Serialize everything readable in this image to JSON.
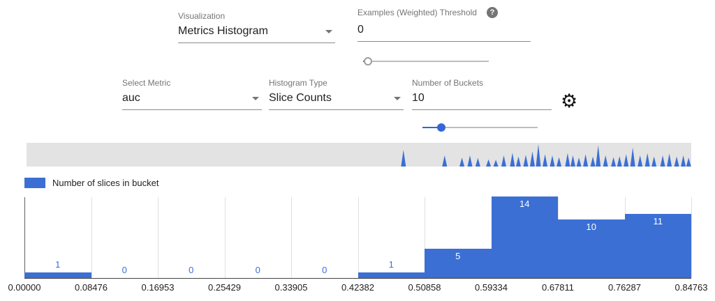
{
  "controls": {
    "visualization": {
      "label": "Visualization",
      "value": "Metrics Histogram"
    },
    "threshold": {
      "label": "Examples (Weighted) Threshold",
      "value": "0"
    },
    "threshold_slider": {
      "fraction": 0.04
    },
    "select_metric": {
      "label": "Select Metric",
      "value": "auc"
    },
    "histogram_type": {
      "label": "Histogram Type",
      "value": "Slice Counts"
    },
    "num_buckets": {
      "label": "Number of Buckets",
      "value": "10"
    },
    "buckets_slider": {
      "fraction": 0.165
    }
  },
  "icons": {
    "help": "?",
    "settings": "⚙"
  },
  "legend": {
    "label": "Number of slices in bucket",
    "color": "#3b6fd4"
  },
  "chart_data": {
    "type": "bar",
    "series": [
      {
        "name": "Number of slices in bucket",
        "values": [
          1,
          0,
          0,
          0,
          0,
          1,
          5,
          14,
          10,
          11
        ]
      }
    ],
    "x_ticks": [
      "0.00000",
      "0.08476",
      "0.16953",
      "0.25429",
      "0.33905",
      "0.42382",
      "0.50858",
      "0.59334",
      "0.67811",
      "0.76287",
      "0.84763"
    ],
    "ylim": [
      0,
      14
    ],
    "grid": true,
    "bar_color": "#3b6fd4",
    "bar_label_color": "#3b6fd4",
    "bar_label_inside_color": "#ffffff",
    "legend_position": "top-left"
  },
  "overview": {
    "background": "#e3e3e3",
    "spike_color": "#3b6fd4",
    "spikes": [
      [
        0.567,
        0.75
      ],
      [
        0.629,
        0.5
      ],
      [
        0.655,
        0.4
      ],
      [
        0.667,
        0.5
      ],
      [
        0.679,
        0.38
      ],
      [
        0.695,
        0.32
      ],
      [
        0.706,
        0.3
      ],
      [
        0.718,
        0.5
      ],
      [
        0.731,
        0.62
      ],
      [
        0.74,
        0.45
      ],
      [
        0.751,
        0.52
      ],
      [
        0.761,
        0.68
      ],
      [
        0.77,
        1.0
      ],
      [
        0.78,
        0.55
      ],
      [
        0.791,
        0.5
      ],
      [
        0.801,
        0.42
      ],
      [
        0.814,
        0.6
      ],
      [
        0.822,
        0.5
      ],
      [
        0.831,
        0.4
      ],
      [
        0.841,
        0.55
      ],
      [
        0.852,
        0.45
      ],
      [
        0.86,
        0.95
      ],
      [
        0.871,
        0.5
      ],
      [
        0.883,
        0.42
      ],
      [
        0.892,
        0.46
      ],
      [
        0.902,
        0.55
      ],
      [
        0.912,
        0.85
      ],
      [
        0.923,
        0.5
      ],
      [
        0.934,
        0.6
      ],
      [
        0.944,
        0.45
      ],
      [
        0.957,
        0.5
      ],
      [
        0.967,
        0.58
      ],
      [
        0.978,
        0.45
      ],
      [
        0.988,
        0.5
      ],
      [
        0.996,
        0.4
      ]
    ]
  }
}
